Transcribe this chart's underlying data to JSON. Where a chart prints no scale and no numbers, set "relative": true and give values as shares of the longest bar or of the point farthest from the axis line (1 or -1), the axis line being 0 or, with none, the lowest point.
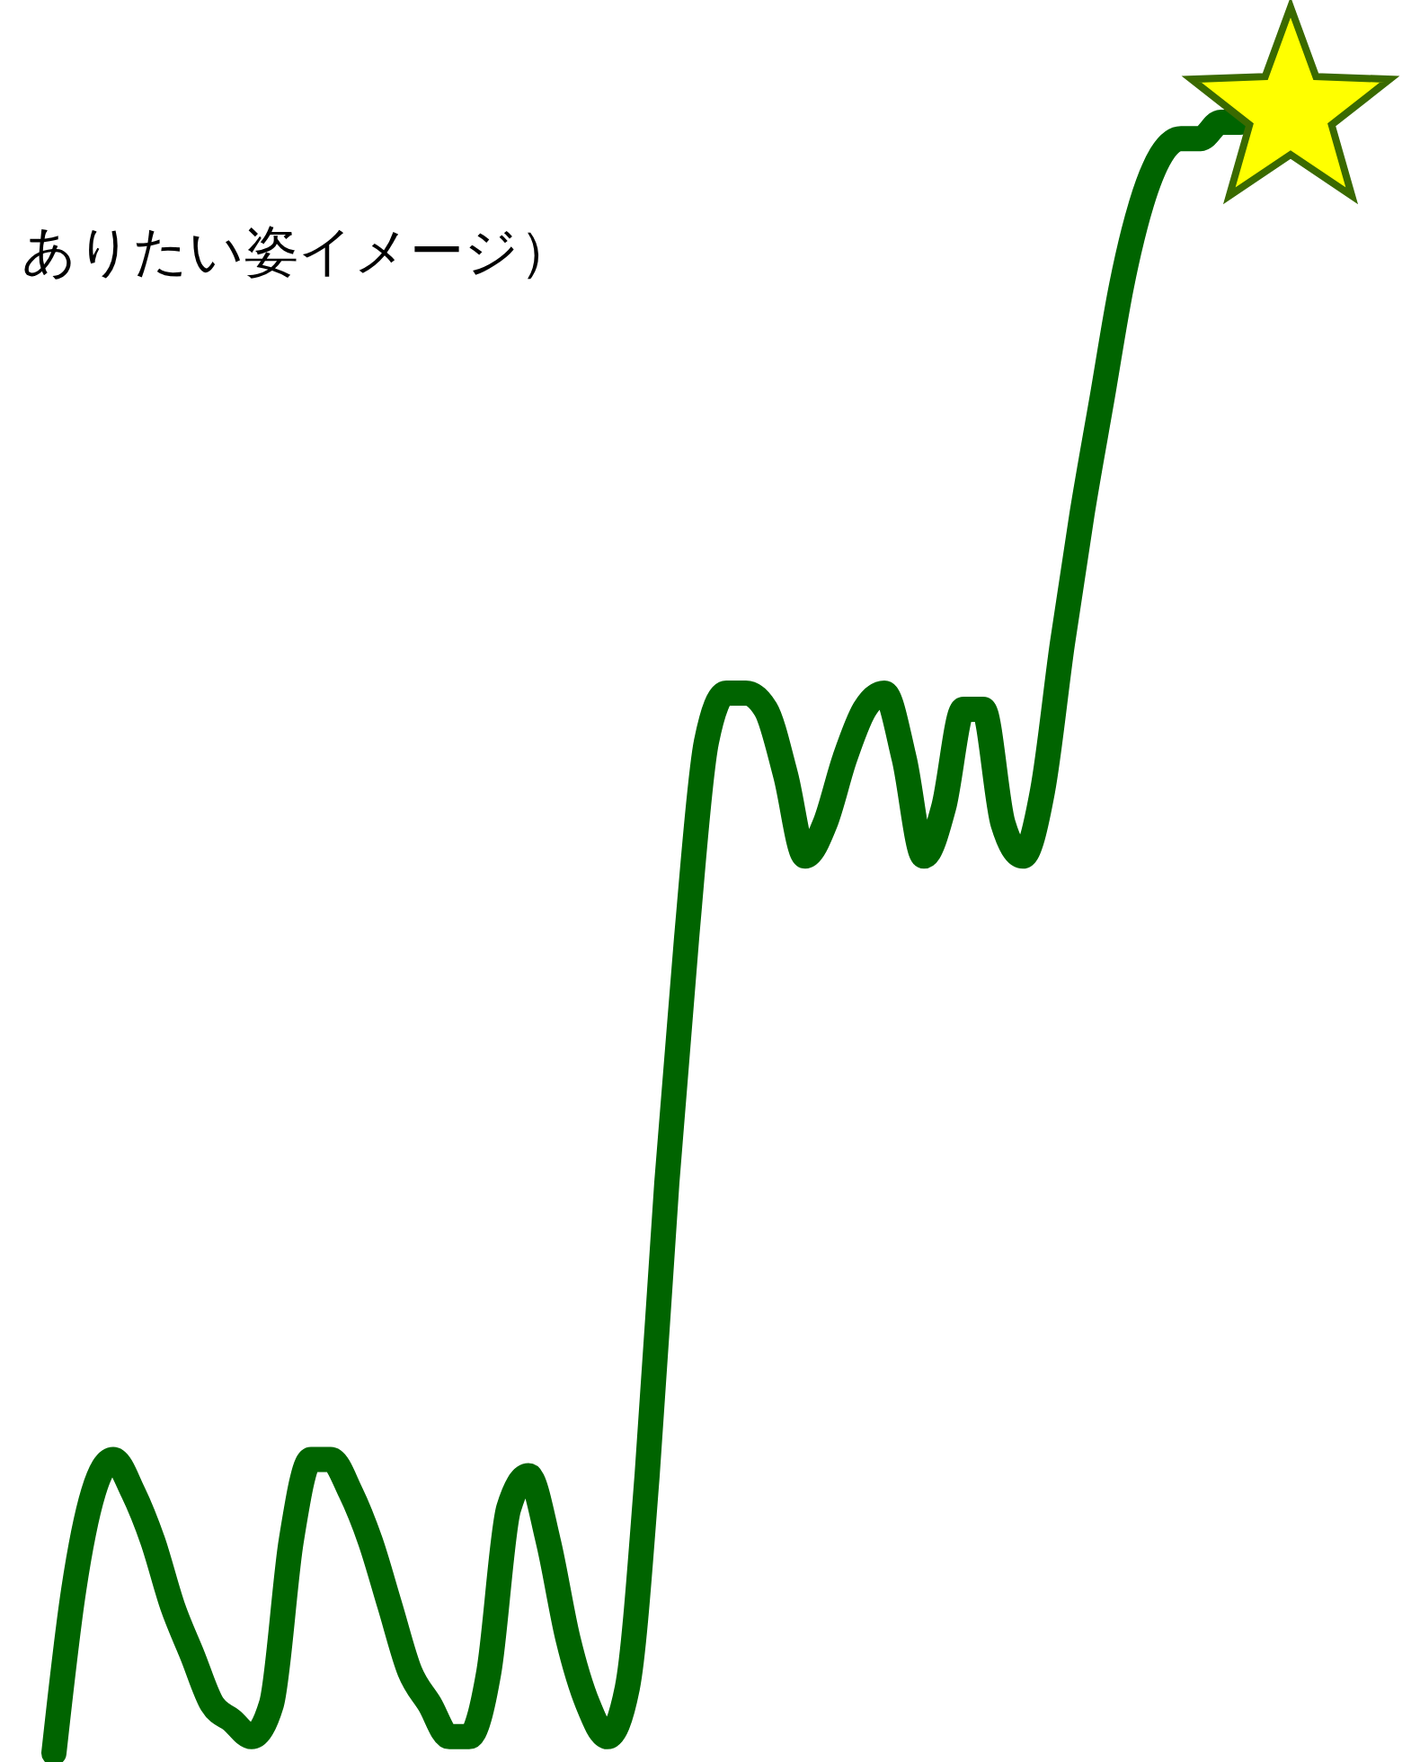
{
  "chart_data": {
    "type": "line",
    "title": "ありたい姿イメージ）",
    "relative": true,
    "grid": false,
    "tick_labels": false,
    "marker": "none",
    "line_style": "solid",
    "categories": [
      null,
      null,
      null,
      null,
      null,
      null,
      null,
      null,
      null,
      null,
      null,
      null,
      null,
      null,
      null,
      null,
      null,
      null,
      null,
      null,
      null,
      null,
      null,
      null,
      null,
      null,
      null,
      null,
      null,
      null,
      null,
      null,
      null,
      null,
      null,
      null,
      null,
      null,
      null,
      null,
      null,
      null,
      null,
      null,
      null,
      null,
      null,
      null,
      null,
      null,
      null,
      null,
      null,
      null,
      null,
      null,
      null,
      null,
      null,
      null,
      null
    ],
    "series": [
      {
        "color": "#006400",
        "values": [
          0,
          0.1,
          0.16,
          0.18,
          0.16,
          0.13,
          0.09,
          0.06,
          0.03,
          0.02,
          0.01,
          0.03,
          0.13,
          0.18,
          0.18,
          0.16,
          0.13,
          0.09,
          0.05,
          0.03,
          0.01,
          0.01,
          0.05,
          0.15,
          0.17,
          0.13,
          0.07,
          0.03,
          0.01,
          0.04,
          0.17,
          0.35,
          0.5,
          0.62,
          0.65,
          0.65,
          0.64,
          0.6,
          0.55,
          0.57,
          0.61,
          0.64,
          0.65,
          0.61,
          0.55,
          0.58,
          0.64,
          0.64,
          0.57,
          0.55,
          0.59,
          0.68,
          0.76,
          0.83,
          0.9,
          0.95,
          0.98,
          0.99,
          0.99,
          1,
          1
        ]
      }
    ]
  }
}
